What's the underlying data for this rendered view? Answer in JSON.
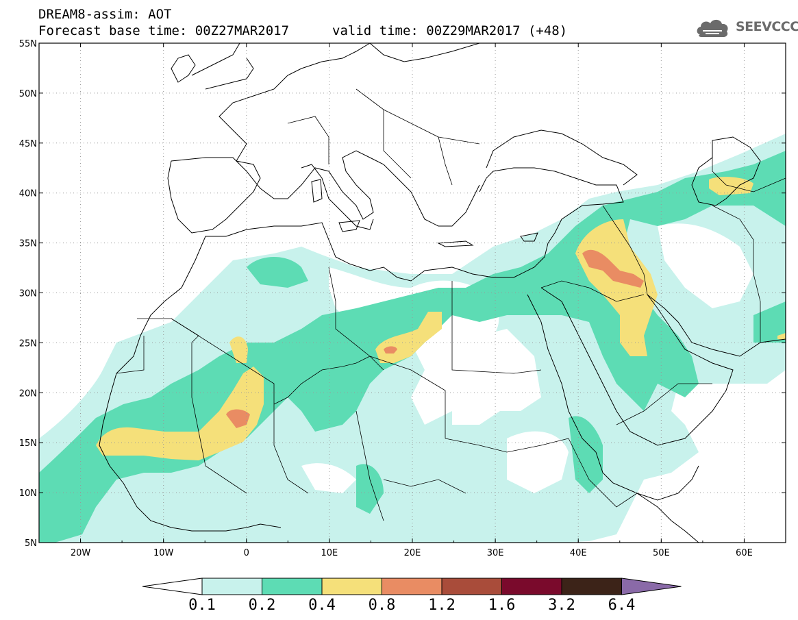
{
  "header": {
    "title": "DREAM8-assim: AOT",
    "base_time": "Forecast base time: 00Z27MAR2017",
    "valid_time": "valid time: 00Z29MAR2017 (+48)"
  },
  "logo": {
    "text": "SEEVCCC",
    "icon": "cloud-logo-icon"
  },
  "map": {
    "lon_range": [
      -25,
      65
    ],
    "lat_range": [
      5,
      55
    ],
    "lon_ticks": [
      {
        "value": -20,
        "label": "20W"
      },
      {
        "value": -10,
        "label": "10W"
      },
      {
        "value": 0,
        "label": "0"
      },
      {
        "value": 10,
        "label": "10E"
      },
      {
        "value": 20,
        "label": "20E"
      },
      {
        "value": 30,
        "label": "30E"
      },
      {
        "value": 40,
        "label": "40E"
      },
      {
        "value": 50,
        "label": "50E"
      },
      {
        "value": 60,
        "label": "60E"
      }
    ],
    "lat_ticks": [
      {
        "value": 55,
        "label": "55N"
      },
      {
        "value": 50,
        "label": "50N"
      },
      {
        "value": 45,
        "label": "45N"
      },
      {
        "value": 40,
        "label": "40N"
      },
      {
        "value": 35,
        "label": "35N"
      },
      {
        "value": 30,
        "label": "30N"
      },
      {
        "value": 25,
        "label": "25N"
      },
      {
        "value": 20,
        "label": "20N"
      },
      {
        "value": 15,
        "label": "15N"
      },
      {
        "value": 10,
        "label": "10N"
      },
      {
        "value": 5,
        "label": "5N"
      }
    ],
    "grid": "dotted"
  },
  "colorbar": {
    "levels": [
      "0.1",
      "0.2",
      "0.4",
      "0.8",
      "1.2",
      "1.6",
      "3.2",
      "6.4"
    ],
    "colors": [
      "#ffffff",
      "#c8f2ec",
      "#5ddcb4",
      "#f5e07a",
      "#e98c63",
      "#a94c3a",
      "#7a0a2c",
      "#3c2318",
      "#8a6aa8"
    ]
  }
}
